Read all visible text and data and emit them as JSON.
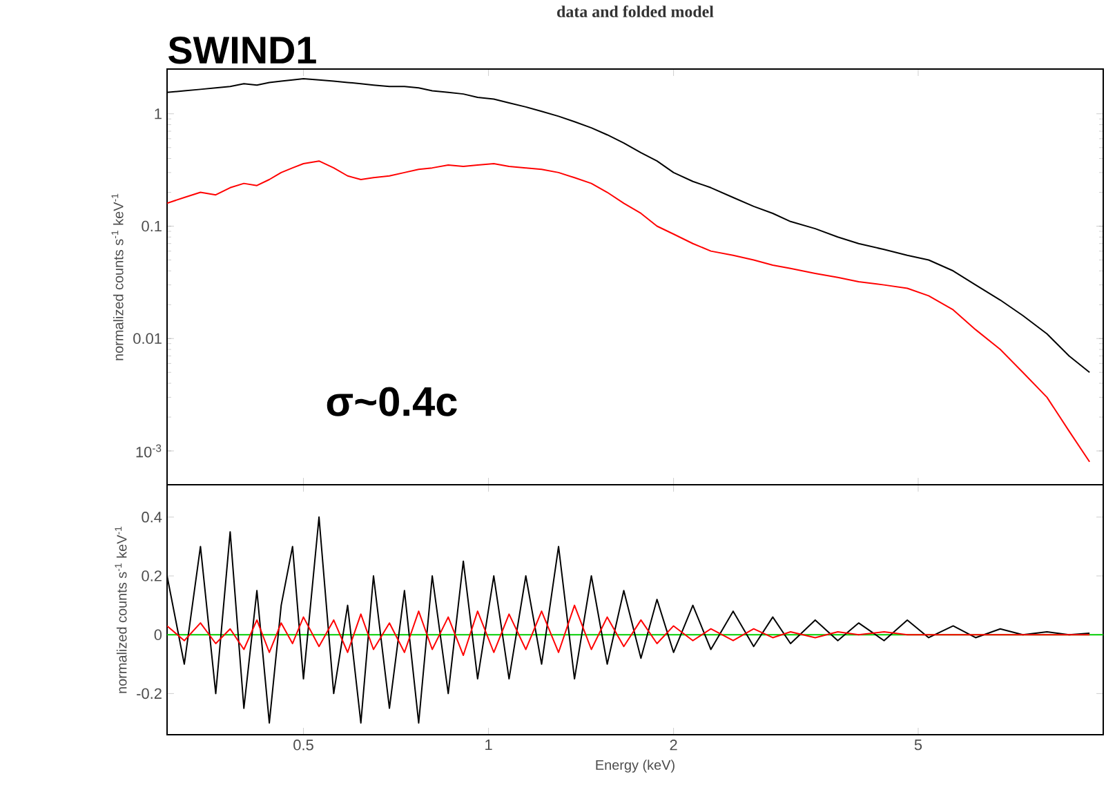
{
  "chart_data": [
    {
      "type": "line",
      "title": "data and folded model",
      "ylabel": "normalized counts s$^{-1}$ keV$^{-1}$",
      "annotations": [
        "SWIND1",
        "σ~0.4c"
      ],
      "x": [
        0.3,
        0.32,
        0.34,
        0.36,
        0.38,
        0.4,
        0.42,
        0.44,
        0.46,
        0.48,
        0.5,
        0.53,
        0.56,
        0.59,
        0.62,
        0.65,
        0.69,
        0.73,
        0.77,
        0.81,
        0.86,
        0.91,
        0.96,
        1.02,
        1.08,
        1.15,
        1.22,
        1.3,
        1.38,
        1.47,
        1.56,
        1.66,
        1.77,
        1.88,
        2.0,
        2.15,
        2.3,
        2.5,
        2.7,
        2.9,
        3.1,
        3.4,
        3.7,
        4.0,
        4.4,
        4.8,
        5.2,
        5.7,
        6.2,
        6.8,
        7.4,
        8.1,
        8.8,
        9.5
      ],
      "series": [
        {
          "color": "#000000",
          "values": [
            1.55,
            1.6,
            1.65,
            1.7,
            1.75,
            1.85,
            1.8,
            1.9,
            1.95,
            2.0,
            2.05,
            2.0,
            1.95,
            1.9,
            1.85,
            1.8,
            1.75,
            1.75,
            1.7,
            1.6,
            1.55,
            1.5,
            1.4,
            1.35,
            1.25,
            1.15,
            1.05,
            0.95,
            0.85,
            0.75,
            0.65,
            0.55,
            0.45,
            0.38,
            0.3,
            0.25,
            0.22,
            0.18,
            0.15,
            0.13,
            0.11,
            0.095,
            0.08,
            0.07,
            0.062,
            0.055,
            0.05,
            0.04,
            0.03,
            0.022,
            0.016,
            0.011,
            0.007,
            0.005
          ]
        },
        {
          "color": "#ff0000",
          "values": [
            0.16,
            0.18,
            0.2,
            0.19,
            0.22,
            0.24,
            0.23,
            0.26,
            0.3,
            0.33,
            0.36,
            0.38,
            0.33,
            0.28,
            0.26,
            0.27,
            0.28,
            0.3,
            0.32,
            0.33,
            0.35,
            0.34,
            0.35,
            0.36,
            0.34,
            0.33,
            0.32,
            0.3,
            0.27,
            0.24,
            0.2,
            0.16,
            0.13,
            0.1,
            0.085,
            0.07,
            0.06,
            0.055,
            0.05,
            0.045,
            0.042,
            0.038,
            0.035,
            0.032,
            0.03,
            0.028,
            0.024,
            0.018,
            0.012,
            0.008,
            0.005,
            0.003,
            0.0015,
            0.0008
          ]
        }
      ],
      "xlim": [
        0.3,
        10
      ],
      "ylim": [
        0.0005,
        2.5
      ],
      "xticks": [
        0.5,
        1,
        2,
        5
      ],
      "yticks": [
        {
          "value": 0.001,
          "label": "10$^{-3}$"
        },
        0.01,
        0.1,
        1
      ],
      "log": "xy",
      "tick_labels": "y"
    },
    {
      "type": "line",
      "xlabel": "Energy (keV)",
      "ylabel": "normalized counts s$^{-1}$ keV$^{-1}$",
      "x": [
        0.3,
        0.32,
        0.34,
        0.36,
        0.38,
        0.4,
        0.42,
        0.44,
        0.46,
        0.48,
        0.5,
        0.53,
        0.56,
        0.59,
        0.62,
        0.65,
        0.69,
        0.73,
        0.77,
        0.81,
        0.86,
        0.91,
        0.96,
        1.02,
        1.08,
        1.15,
        1.22,
        1.3,
        1.38,
        1.47,
        1.56,
        1.66,
        1.77,
        1.88,
        2.0,
        2.15,
        2.3,
        2.5,
        2.7,
        2.9,
        3.1,
        3.4,
        3.7,
        4.0,
        4.4,
        4.8,
        5.2,
        5.7,
        6.2,
        6.8,
        7.4,
        8.1,
        8.8,
        9.5
      ],
      "series": [
        {
          "color": "#00cc00",
          "x": [
            0.3,
            10
          ],
          "values": [
            0,
            0
          ]
        },
        {
          "color": "#000000",
          "values": [
            0.2,
            -0.1,
            0.3,
            -0.2,
            0.35,
            -0.25,
            0.15,
            -0.3,
            0.1,
            0.3,
            -0.15,
            0.4,
            -0.2,
            0.1,
            -0.3,
            0.2,
            -0.25,
            0.15,
            -0.3,
            0.2,
            -0.2,
            0.25,
            -0.15,
            0.2,
            -0.15,
            0.2,
            -0.1,
            0.3,
            -0.15,
            0.2,
            -0.1,
            0.15,
            -0.08,
            0.12,
            -0.06,
            0.1,
            -0.05,
            0.08,
            -0.04,
            0.06,
            -0.03,
            0.05,
            -0.02,
            0.04,
            -0.02,
            0.05,
            -0.01,
            0.03,
            -0.01,
            0.02,
            0,
            0.01,
            0,
            0.005
          ]
        },
        {
          "color": "#ff0000",
          "values": [
            0.03,
            -0.02,
            0.04,
            -0.03,
            0.02,
            -0.05,
            0.05,
            -0.06,
            0.04,
            -0.03,
            0.06,
            -0.04,
            0.05,
            -0.06,
            0.07,
            -0.05,
            0.04,
            -0.06,
            0.08,
            -0.05,
            0.06,
            -0.07,
            0.08,
            -0.06,
            0.07,
            -0.05,
            0.08,
            -0.06,
            0.1,
            -0.05,
            0.06,
            -0.04,
            0.05,
            -0.03,
            0.03,
            -0.02,
            0.02,
            -0.02,
            0.02,
            -0.01,
            0.01,
            -0.01,
            0.01,
            0,
            0.01,
            0,
            0,
            0,
            0,
            0,
            0,
            0,
            0,
            0
          ]
        }
      ],
      "xlim": [
        0.3,
        10
      ],
      "ylim": [
        -0.34,
        0.51
      ],
      "xticks": [
        0.5,
        1,
        2,
        5
      ],
      "yticks": [
        -0.2,
        0,
        0.2,
        0.4
      ],
      "log": "x"
    }
  ]
}
